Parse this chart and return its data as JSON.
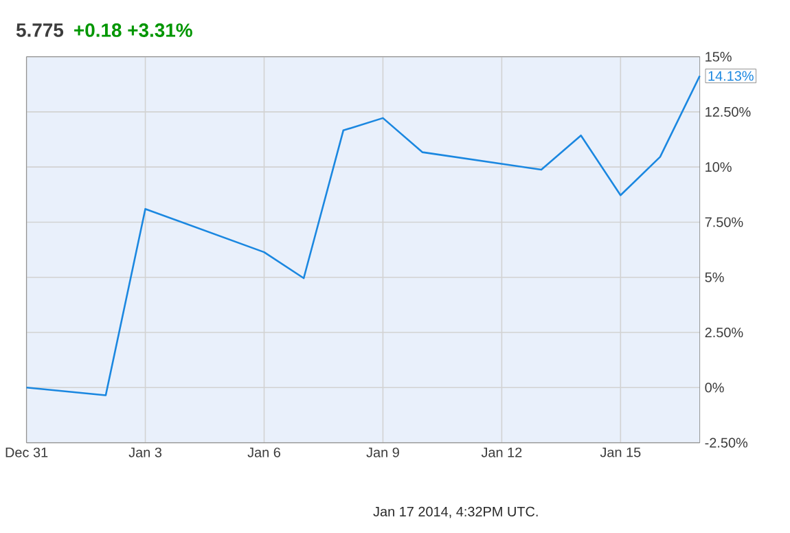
{
  "chart_data": {
    "type": "line",
    "title": "5.775",
    "subtitle": "+0.18  +3.31%",
    "x": [
      "2013-12-31",
      "2014-01-02",
      "2014-01-03",
      "2014-01-06",
      "2014-01-07",
      "2014-01-08",
      "2014-01-09",
      "2014-01-10",
      "2014-01-13",
      "2014-01-14",
      "2014-01-15",
      "2014-01-16",
      "2014-01-17"
    ],
    "series": [
      {
        "color": "#1a87e0",
        "values": [
          0,
          -0.35,
          8.1,
          6.14,
          4.96,
          11.66,
          12.22,
          10.67,
          9.88,
          11.43,
          8.72,
          10.46,
          14.13
        ]
      }
    ],
    "xlim": [
      "2013-12-31",
      "2014-01-17"
    ],
    "xticks": [
      {
        "value": "2013-12-31",
        "label": "Dec 31"
      },
      {
        "value": "2014-01-03",
        "label": "Jan 3"
      },
      {
        "value": "2014-01-06",
        "label": "Jan 6"
      },
      {
        "value": "2014-01-09",
        "label": "Jan 9"
      },
      {
        "value": "2014-01-12",
        "label": "Jan 12"
      },
      {
        "value": "2014-01-15",
        "label": "Jan 15"
      }
    ],
    "ylim": [
      -2.5,
      15
    ],
    "yticks": [
      {
        "value": -2.5,
        "label": "-2.50%"
      },
      {
        "value": 0,
        "label": "0%"
      },
      {
        "value": 2.5,
        "label": "2.50%"
      },
      {
        "value": 5,
        "label": "5%"
      },
      {
        "value": 7.5,
        "label": "7.50%"
      },
      {
        "value": 10,
        "label": "10%"
      },
      {
        "value": 12.5,
        "label": "12.50%"
      },
      {
        "value": 15,
        "label": "15%"
      }
    ],
    "grid": true,
    "marker": "none",
    "line_style": "solid",
    "annotations": [
      {
        "text": "14.13%",
        "x": "2014-01-17",
        "y": 14.13
      },
      "Jan 17 2014, 4:32PM UTC."
    ]
  }
}
